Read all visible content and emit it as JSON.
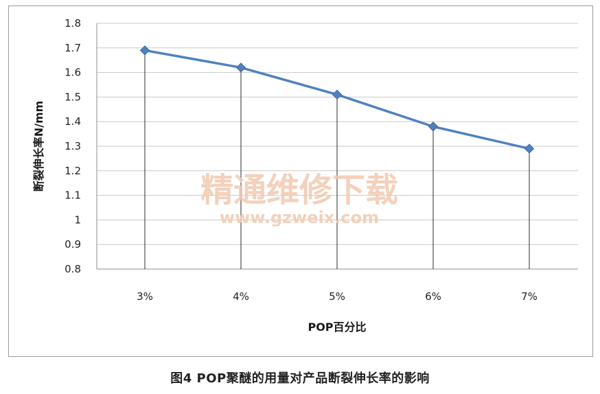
{
  "chart_data": {
    "type": "line",
    "categories": [
      "3%",
      "4%",
      "5%",
      "6%",
      "7%"
    ],
    "series": [
      {
        "values": [
          1.69,
          1.62,
          1.51,
          1.38,
          1.29
        ]
      }
    ],
    "xlabel": "POP百分比",
    "ylabel": "断裂伸长率N/mm",
    "ylim": [
      0.8,
      1.8
    ],
    "yticks": [
      "1.8",
      "1.7",
      "1.6",
      "1.5",
      "1.4",
      "1.3",
      "1.2",
      "1.1",
      "1",
      "0.9",
      "0.8"
    ],
    "grid": true,
    "drop_lines": true,
    "marker": "diamond",
    "series_color": "#4f81bd",
    "grid_color": "#c8c8c8"
  },
  "caption": "图4 POP聚醚的用量对产品断裂伸长率的影响",
  "watermark": {
    "text": "精通维修下载",
    "url": "www.gzweix.com"
  }
}
